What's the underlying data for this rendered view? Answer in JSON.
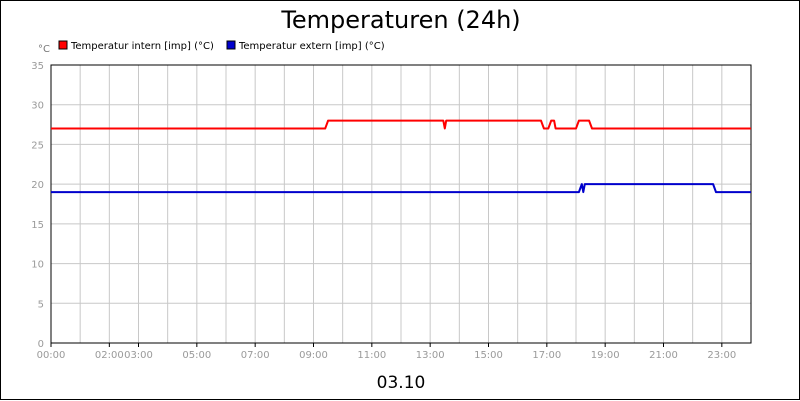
{
  "chart_data": {
    "type": "line",
    "title": "Temperaturen (24h)",
    "y_unit": "°C",
    "date_label": "03.10",
    "ylim": [
      0,
      35
    ],
    "y_ticks": [
      0,
      5,
      10,
      15,
      20,
      25,
      30,
      35
    ],
    "x_range_hours": [
      0,
      24
    ],
    "x_ticks": [
      {
        "h": 0,
        "label": "00:00"
      },
      {
        "h": 2,
        "label": "02:00"
      },
      {
        "h": 3,
        "label": "03:00"
      },
      {
        "h": 5,
        "label": "05:00"
      },
      {
        "h": 7,
        "label": "07:00"
      },
      {
        "h": 9,
        "label": "09:00"
      },
      {
        "h": 11,
        "label": "11:00"
      },
      {
        "h": 13,
        "label": "13:00"
      },
      {
        "h": 15,
        "label": "15:00"
      },
      {
        "h": 17,
        "label": "17:00"
      },
      {
        "h": 19,
        "label": "19:00"
      },
      {
        "h": 21,
        "label": "21:00"
      },
      {
        "h": 23,
        "label": "23:00"
      }
    ],
    "grid": true,
    "legend_position": "top-left",
    "series": [
      {
        "name": "Temperatur intern [imp] (°C)",
        "color": "#ff0000",
        "points": [
          [
            0,
            27
          ],
          [
            9.4,
            27
          ],
          [
            9.5,
            28
          ],
          [
            13.45,
            28
          ],
          [
            13.5,
            27
          ],
          [
            13.55,
            28
          ],
          [
            16.8,
            28
          ],
          [
            16.9,
            27
          ],
          [
            17.05,
            27
          ],
          [
            17.15,
            28
          ],
          [
            17.25,
            28
          ],
          [
            17.3,
            27
          ],
          [
            18.0,
            27
          ],
          [
            18.1,
            28
          ],
          [
            18.45,
            28
          ],
          [
            18.55,
            27
          ],
          [
            24,
            27
          ]
        ]
      },
      {
        "name": "Temperatur extern [imp] (°C)",
        "color": "#0000cc",
        "points": [
          [
            0,
            19
          ],
          [
            18.1,
            19
          ],
          [
            18.2,
            20
          ],
          [
            18.25,
            19
          ],
          [
            18.3,
            20
          ],
          [
            22.7,
            20
          ],
          [
            22.8,
            19
          ],
          [
            24,
            19
          ]
        ]
      }
    ]
  }
}
